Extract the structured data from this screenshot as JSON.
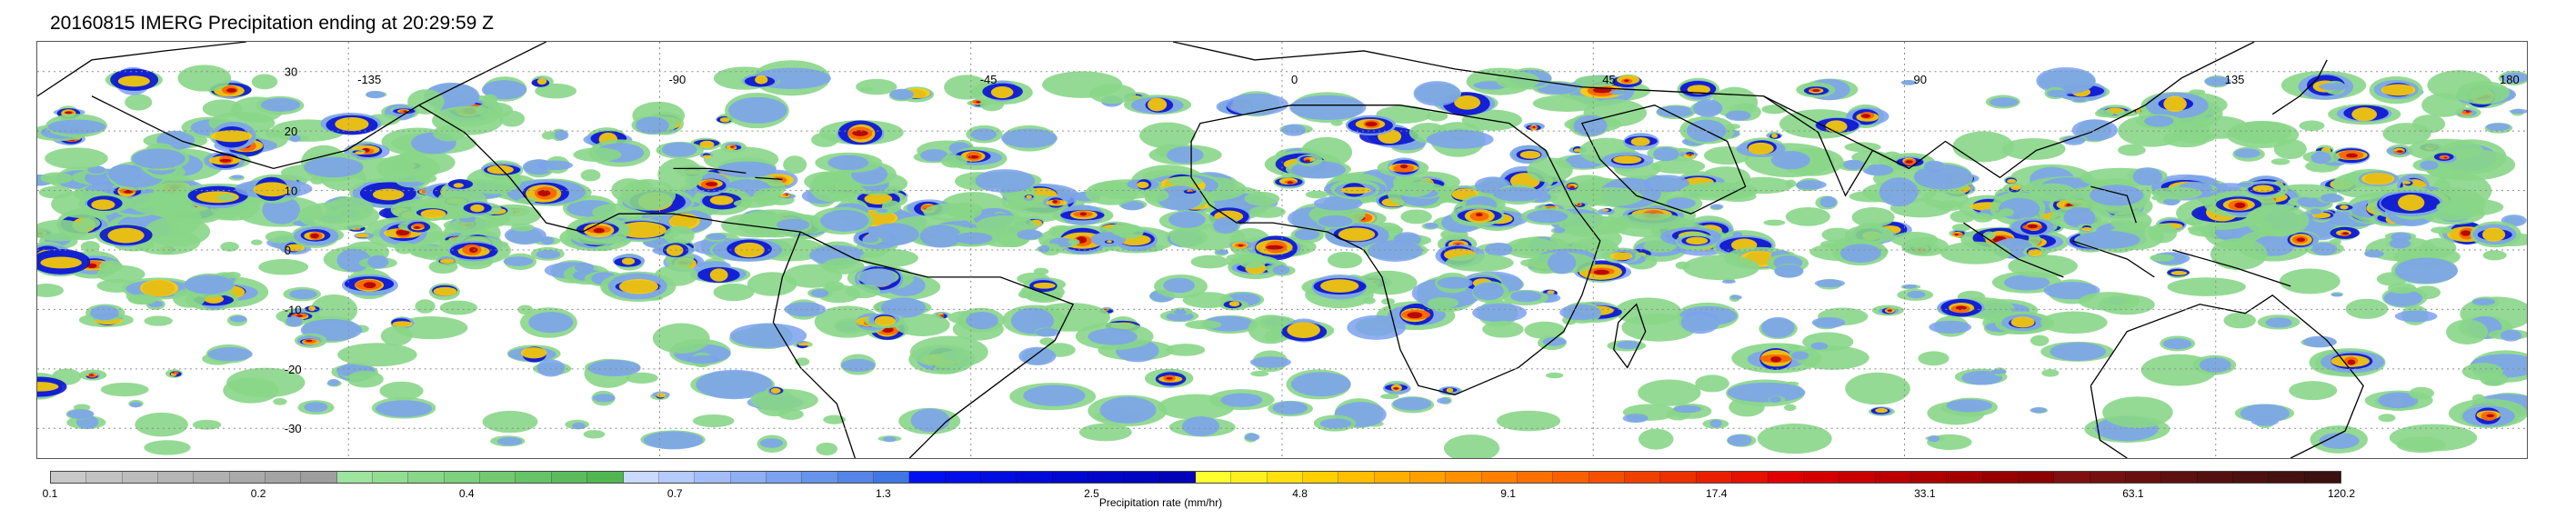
{
  "title": "20160815 IMERG Precipitation ending at 20:29:59 Z",
  "map": {
    "lon_labels": [
      "-135",
      "-90",
      "-45",
      "0",
      "45",
      "90",
      "135",
      "180"
    ],
    "lat_labels": [
      "30",
      "20",
      "10",
      "0",
      "-10",
      "-20",
      "-30"
    ],
    "lon_range": [
      -180,
      180
    ],
    "lat_range": [
      -35,
      35
    ],
    "grid": "dotted",
    "land_outline_color": "#000000"
  },
  "colorbar": {
    "title": "Precipitation rate (mm/hr)",
    "labels": [
      "0.1",
      "0.2",
      "0.4",
      "0.7",
      "1.3",
      "2.5",
      "4.8",
      "9.1",
      "17.4",
      "33.1",
      "63.1",
      "120.2"
    ],
    "colors": [
      "#c8c8c8",
      "#c2c2c2",
      "#bcbcbc",
      "#b6b6b6",
      "#b0b0b0",
      "#aaaaaa",
      "#a4a4a4",
      "#9e9e9e",
      "#9ee39e",
      "#93dd93",
      "#88d688",
      "#7dd07d",
      "#72c972",
      "#67c367",
      "#5cbc5c",
      "#51b651",
      "#c9d9ff",
      "#b5cbfb",
      "#a2bdf7",
      "#8eaff3",
      "#7ba1ef",
      "#6793eb",
      "#5485e7",
      "#4077e3",
      "#0010f0",
      "#000ee8",
      "#000ce0",
      "#000ad8",
      "#0008d0",
      "#0006c8",
      "#0004c0",
      "#0002b8",
      "#ffff30",
      "#ffef20",
      "#ffdf10",
      "#ffcf00",
      "#ffbf00",
      "#ffaf00",
      "#ff9f00",
      "#ff8f00",
      "#ff8000",
      "#fc7000",
      "#f86000",
      "#f45000",
      "#f04000",
      "#ec3000",
      "#e82000",
      "#e41000",
      "#e00000",
      "#d40000",
      "#c80000",
      "#bc0000",
      "#b00000",
      "#a40000",
      "#980000",
      "#8c0000",
      "#801010",
      "#741010",
      "#681010",
      "#5c1010",
      "#541010",
      "#4c1010",
      "#441010",
      "#3c1010"
    ]
  }
}
